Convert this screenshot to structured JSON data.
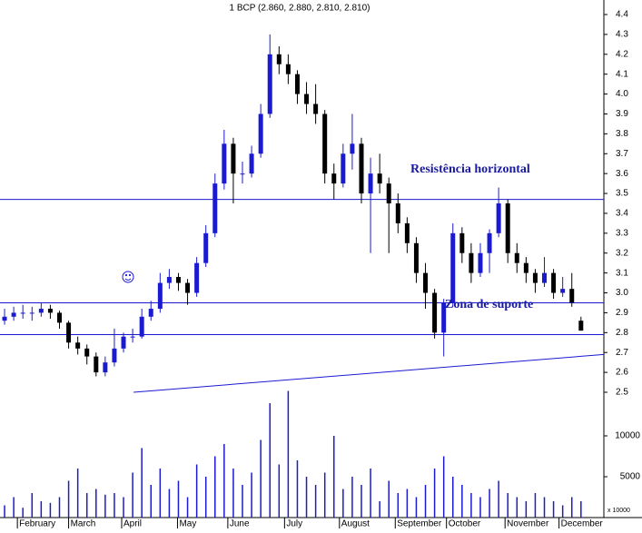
{
  "chart_data": {
    "type": "candlestick",
    "title": "1 BCP (2.860, 2.880, 2.810, 2.810)",
    "x": [
      0,
      1,
      2,
      3,
      4,
      5,
      6,
      7,
      8,
      9,
      10,
      11,
      12,
      13,
      14,
      15,
      16,
      17,
      18,
      19,
      20,
      21,
      22,
      23,
      24,
      25,
      26,
      27,
      28,
      29,
      30,
      31,
      32,
      33,
      34,
      35,
      36,
      37,
      38,
      39,
      40,
      41,
      42,
      43,
      44,
      45,
      46,
      47,
      48,
      49,
      50,
      51,
      52,
      53,
      54,
      55,
      56,
      57,
      58,
      59,
      60,
      61,
      62,
      63
    ],
    "open": [
      2.86,
      2.88,
      2.9,
      2.9,
      2.9,
      2.92,
      2.9,
      2.85,
      2.75,
      2.72,
      2.68,
      2.6,
      2.65,
      2.72,
      2.78,
      2.78,
      2.88,
      2.92,
      3.05,
      3.08,
      3.05,
      3.0,
      3.15,
      3.3,
      3.55,
      3.75,
      3.6,
      3.6,
      3.7,
      3.9,
      4.2,
      4.15,
      4.1,
      4.0,
      3.95,
      3.9,
      3.6,
      3.55,
      3.7,
      3.75,
      3.5,
      3.6,
      3.55,
      3.45,
      3.35,
      3.25,
      3.1,
      3.0,
      2.8,
      2.95,
      3.3,
      3.2,
      3.1,
      3.2,
      3.3,
      3.45,
      3.2,
      3.15,
      3.1,
      3.05,
      3.1,
      3.0,
      3.02,
      2.86
    ],
    "high": [
      2.92,
      2.93,
      2.94,
      2.93,
      2.95,
      2.94,
      2.91,
      2.86,
      2.78,
      2.74,
      2.7,
      2.68,
      2.82,
      2.8,
      2.82,
      2.92,
      2.96,
      3.1,
      3.12,
      3.1,
      3.07,
      3.18,
      3.34,
      3.6,
      3.82,
      3.78,
      3.66,
      3.74,
      3.95,
      4.3,
      4.24,
      4.2,
      4.12,
      4.06,
      4.05,
      3.92,
      3.65,
      3.75,
      3.9,
      3.78,
      3.68,
      3.7,
      3.58,
      3.5,
      3.38,
      3.28,
      3.15,
      3.02,
      2.97,
      3.35,
      3.33,
      3.25,
      3.25,
      3.32,
      3.53,
      3.47,
      3.25,
      3.18,
      3.12,
      3.18,
      3.12,
      3.08,
      3.1,
      2.88
    ],
    "low": [
      2.84,
      2.86,
      2.87,
      2.86,
      2.88,
      2.87,
      2.82,
      2.72,
      2.69,
      2.64,
      2.58,
      2.58,
      2.63,
      2.7,
      2.75,
      2.77,
      2.86,
      2.9,
      3.02,
      3.01,
      2.94,
      2.98,
      3.13,
      3.28,
      3.52,
      3.45,
      3.55,
      3.58,
      3.68,
      3.88,
      4.1,
      4.05,
      3.95,
      3.9,
      3.85,
      3.55,
      3.47,
      3.53,
      3.62,
      3.45,
      3.2,
      3.5,
      3.2,
      3.3,
      3.2,
      3.05,
      2.92,
      2.77,
      2.68,
      2.93,
      3.15,
      3.05,
      3.08,
      3.1,
      3.28,
      3.15,
      3.1,
      3.05,
      3.0,
      3.03,
      2.97,
      2.98,
      2.93,
      2.81
    ],
    "close": [
      2.88,
      2.9,
      2.9,
      2.9,
      2.92,
      2.9,
      2.85,
      2.75,
      2.72,
      2.68,
      2.6,
      2.65,
      2.72,
      2.78,
      2.78,
      2.88,
      2.92,
      3.05,
      3.08,
      3.05,
      3.0,
      3.15,
      3.3,
      3.55,
      3.75,
      3.6,
      3.6,
      3.7,
      3.9,
      4.2,
      4.15,
      4.1,
      4.0,
      3.95,
      3.9,
      3.6,
      3.55,
      3.7,
      3.75,
      3.5,
      3.6,
      3.55,
      3.45,
      3.35,
      3.25,
      3.1,
      3.0,
      2.8,
      2.95,
      3.3,
      3.2,
      3.1,
      3.2,
      3.3,
      3.45,
      3.2,
      3.15,
      3.1,
      3.05,
      3.1,
      3.0,
      3.02,
      2.95,
      2.81
    ],
    "up_color": "#1a1ad0",
    "down_color": "#000000",
    "xlim": [
      -0.5,
      65.5
    ],
    "xticks": [
      {
        "value": 1.4,
        "label": "February"
      },
      {
        "value": 7,
        "label": "March"
      },
      {
        "value": 12.8,
        "label": "April"
      },
      {
        "value": 18.9,
        "label": "May"
      },
      {
        "value": 24.4,
        "label": "June"
      },
      {
        "value": 30.6,
        "label": "July"
      },
      {
        "value": 36.6,
        "label": "August"
      },
      {
        "value": 42.7,
        "label": "September"
      },
      {
        "value": 48.3,
        "label": "October"
      },
      {
        "value": 54.7,
        "label": "November"
      },
      {
        "value": 60.6,
        "label": "December"
      }
    ],
    "ylim": [
      2.5,
      4.4
    ],
    "yticks": [
      2.5,
      2.6,
      2.7,
      2.8,
      2.9,
      {
        "value": 3.0,
        "label": "3.0"
      },
      3.1,
      3.2,
      3.3,
      3.4,
      3.5,
      3.6,
      3.7,
      3.8,
      3.9,
      {
        "value": 4.0,
        "label": "4.0"
      },
      4.1,
      4.2,
      4.3,
      4.4
    ],
    "horizontal_lines": [
      3.47,
      2.95,
      2.79
    ],
    "line_color": "#1a1ad0",
    "trend_line": {
      "x": [
        14.1,
        65.5
      ],
      "y": [
        2.5,
        2.69
      ]
    },
    "annotations": [
      "Resistência horizontal",
      "Zona de suporte"
    ],
    "volume": {
      "values": [
        1500,
        2500,
        1200,
        3000,
        2000,
        1800,
        2500,
        4500,
        6000,
        3000,
        3500,
        2800,
        3000,
        2500,
        5500,
        8500,
        4000,
        6000,
        3500,
        4500,
        2500,
        6500,
        5000,
        7500,
        9000,
        6000,
        4000,
        5500,
        9500,
        14000,
        6500,
        15500,
        7000,
        5000,
        4000,
        5500,
        10000,
        3500,
        5000,
        4000,
        6000,
        2000,
        4500,
        3000,
        3500,
        2500,
        4000,
        6000,
        7500,
        5000,
        4000,
        3000,
        2500,
        3500,
        4500,
        3000,
        2500,
        2000,
        3000,
        2500,
        2000,
        1500,
        2500,
        2000
      ],
      "color": "#1a1ad0",
      "ylim": [
        0,
        15000
      ],
      "yticks": [
        5000,
        10000
      ],
      "unit_label": "x 10000"
    }
  }
}
